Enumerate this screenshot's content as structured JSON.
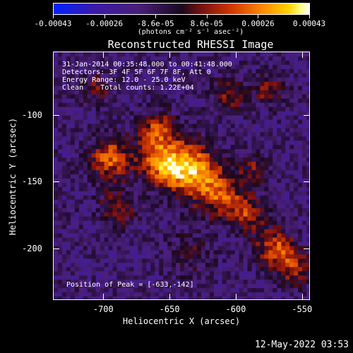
{
  "colorbar": {
    "tick_labels": [
      "-0.00043",
      "-0.00026",
      "-8.6e-05",
      "8.6e-05",
      "0.00026",
      "0.00043"
    ],
    "units": "(photons cm⁻² s⁻¹ asec⁻²)",
    "min": -0.00043,
    "max": 0.00043
  },
  "title": "Reconstructed RHESSI Image",
  "info_lines": [
    "31-Jan-2014 00:35:48.000 to 00:41:48.000",
    "Detectors: 3F 4F 5F 6F 7F 8F, Att 0",
    "Energy Range: 12.0 - 25.0 keV",
    "Clean    Total counts: 1.22E+04"
  ],
  "peak_label": "Position of Peak = [-633,-142]",
  "x_axis": {
    "title": "Heliocentric X (arcsec)",
    "ticks": [
      -700,
      -650,
      -600,
      -550
    ],
    "tick_labels": [
      "-700",
      "-650",
      "-600",
      "-550"
    ],
    "range": [
      -738,
      -544
    ]
  },
  "y_axis": {
    "title": "Heliocentric Y (arcsec)",
    "ticks": [
      -100,
      -150,
      -200
    ],
    "tick_labels": [
      "-100",
      "-150",
      "-200"
    ],
    "range": [
      -239,
      -52
    ]
  },
  "chart_data": {
    "type": "heatmap",
    "title": "Reconstructed RHESSI Image",
    "xlabel": "Heliocentric X (arcsec)",
    "ylabel": "Heliocentric Y (arcsec)",
    "xlim": [
      -738,
      -544
    ],
    "ylim": [
      -239,
      -52
    ],
    "peak": {
      "x": -633,
      "y": -142
    },
    "sources": [
      {
        "x": -633,
        "y": -142,
        "intensity": 1.0,
        "sigma": 14
      },
      {
        "x": -655,
        "y": -135,
        "intensity": 0.85,
        "sigma": 12
      },
      {
        "x": -660,
        "y": -110,
        "intensity": 0.6,
        "sigma": 10
      },
      {
        "x": -695,
        "y": -132,
        "intensity": 0.75,
        "sigma": 11
      },
      {
        "x": -610,
        "y": -160,
        "intensity": 0.65,
        "sigma": 12
      },
      {
        "x": -570,
        "y": -200,
        "intensity": 0.7,
        "sigma": 10
      },
      {
        "x": -590,
        "y": -175,
        "intensity": 0.55,
        "sigma": 9
      },
      {
        "x": -555,
        "y": -215,
        "intensity": 0.55,
        "sigma": 9
      },
      {
        "x": -605,
        "y": -85,
        "intensity": 0.5,
        "sigma": 9
      },
      {
        "x": -575,
        "y": -80,
        "intensity": 0.45,
        "sigma": 8
      },
      {
        "x": -690,
        "y": -170,
        "intensity": 0.4,
        "sigma": 10
      },
      {
        "x": -705,
        "y": -80,
        "intensity": 0.35,
        "sigma": 9
      },
      {
        "x": -585,
        "y": -140,
        "intensity": 0.4,
        "sigma": 8
      },
      {
        "x": -635,
        "y": -205,
        "intensity": 0.25,
        "sigma": 12
      }
    ],
    "background": -0.3
  },
  "timestamp": "12-May-2022 03:53"
}
